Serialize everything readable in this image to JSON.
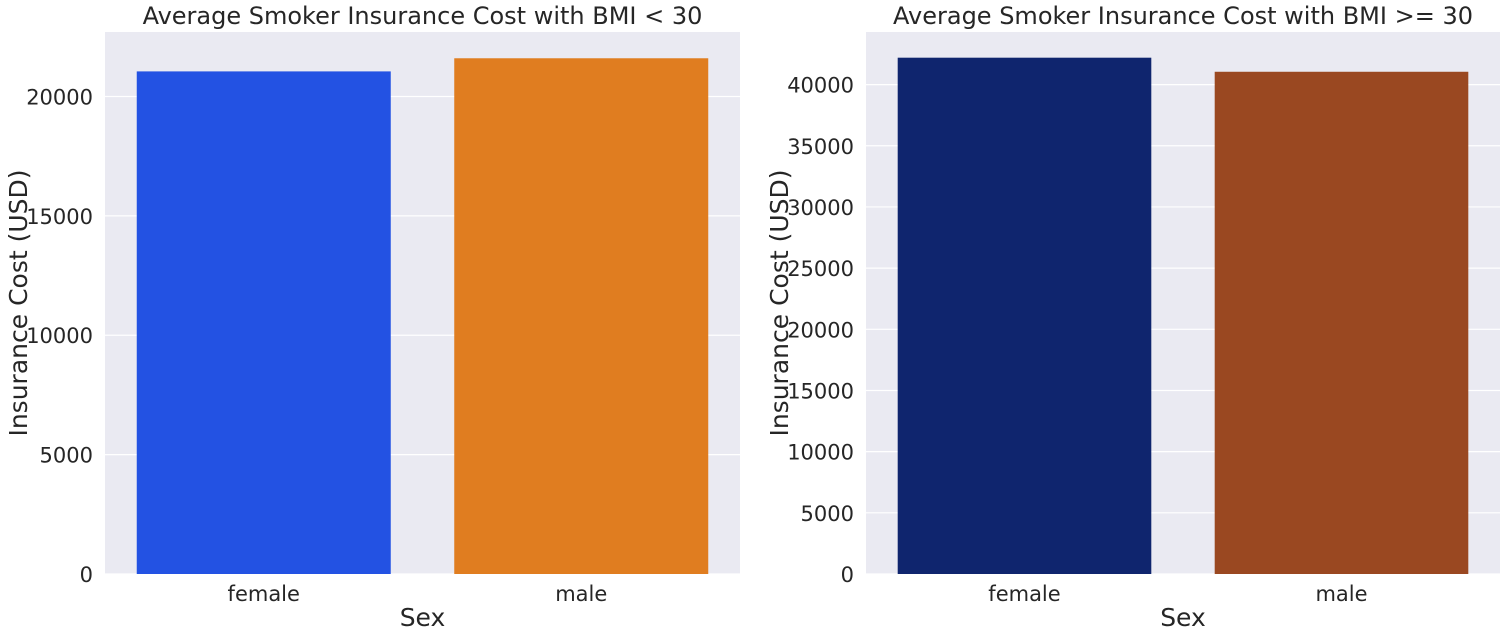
{
  "chart_data": [
    {
      "type": "bar",
      "title": "Average Smoker Insurance Cost with BMI < 30",
      "xlabel": "Sex",
      "ylabel": "Insurance Cost (USD)",
      "categories": [
        "female",
        "male"
      ],
      "values": [
        21050,
        21600
      ],
      "colors": [
        "#2352e3",
        "#e07d20"
      ],
      "yticks": [
        0,
        5000,
        10000,
        15000,
        20000
      ],
      "ylim": [
        0,
        22700
      ],
      "grid": true,
      "background": "#eaeaf2"
    },
    {
      "type": "bar",
      "title": "Average Smoker Insurance Cost with BMI >= 30",
      "xlabel": "Sex",
      "ylabel": "Insurance Cost (USD)",
      "categories": [
        "female",
        "male"
      ],
      "values": [
        42200,
        41050
      ],
      "colors": [
        "#0f256e",
        "#9a4821"
      ],
      "yticks": [
        0,
        5000,
        10000,
        15000,
        20000,
        25000,
        30000,
        35000,
        40000
      ],
      "ylim": [
        0,
        44300
      ],
      "grid": true,
      "background": "#eaeaf2"
    }
  ]
}
